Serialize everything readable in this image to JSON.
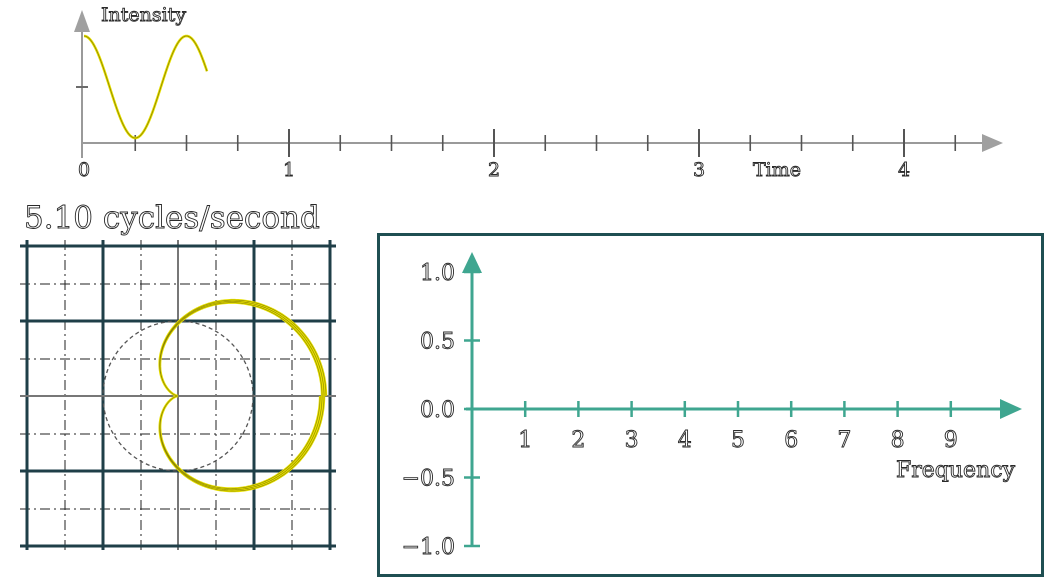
{
  "time_plot": {
    "y_label": "Intensity",
    "x_label": "Time",
    "x_ticks": [
      "0",
      "1",
      "2",
      "3",
      "4"
    ],
    "signal_frequency": 2.0,
    "signal_shown_until": 0.6,
    "colors": {
      "signal": "#e8e000",
      "axis": "#9a9a9a"
    }
  },
  "winding": {
    "title": "5.10  cycles/second",
    "winding_frequency": 5.1,
    "colors": {
      "curve": "#e8e000",
      "grid": "#1f3f48",
      "guide_circle": "#555555"
    }
  },
  "frequency_plot": {
    "x_label": "Frequency",
    "y_ticks": [
      "1.0",
      "0.5",
      "0.0",
      "−0.5",
      "−1.0"
    ],
    "x_ticks": [
      "1",
      "2",
      "3",
      "4",
      "5",
      "6",
      "7",
      "8",
      "9"
    ],
    "colors": {
      "axis": "#3fa690",
      "frame": "#1f4f52"
    }
  }
}
